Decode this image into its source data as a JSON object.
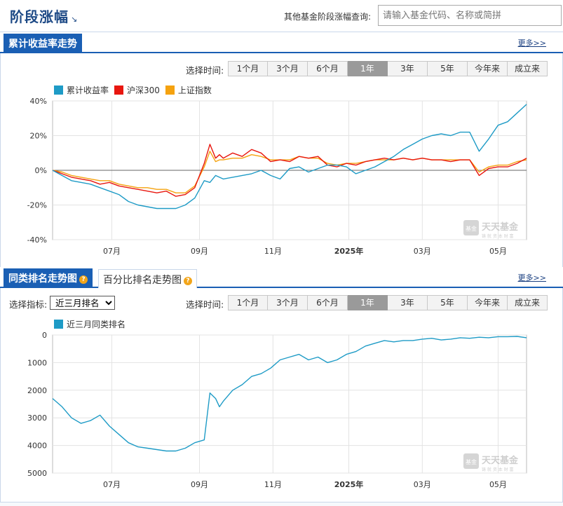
{
  "header": {
    "title": "阶段涨幅",
    "title_arrow": "↘",
    "search_label": "其他基金阶段涨幅查询:",
    "search_placeholder": "请输入基金代码、名称或简拼"
  },
  "section1": {
    "tab": "累计收益率走势",
    "more": "更多>>",
    "time_label": "选择时间:",
    "time_options": [
      "1个月",
      "3个月",
      "6个月",
      "1年",
      "3年",
      "5年",
      "今年来",
      "成立来"
    ],
    "active_time": "1年"
  },
  "section2": {
    "tab_active": "同类排名走势图",
    "tab_other": "百分比排名走势图",
    "help_glyph": "?",
    "more": "更多>>",
    "metric_label": "选择指标:",
    "metric_value": "近三月排名",
    "time_label": "选择时间:",
    "time_options": [
      "1个月",
      "3个月",
      "6个月",
      "1年",
      "3年",
      "5年",
      "今年来",
      "成立来"
    ],
    "active_time": "1年"
  },
  "watermark": {
    "badge": "基金",
    "text": "天天基金",
    "sub": "铸 就 资 本 财 富"
  },
  "colors": {
    "brand": "#1a5fb4",
    "fund": "#1e9bc6",
    "hs300": "#e8170f",
    "sh": "#f5a20f"
  },
  "chart_data": [
    {
      "type": "line",
      "x_ticks": [
        "07月",
        "09月",
        "11月",
        "2025年",
        "03月",
        "05月"
      ],
      "ylim": [
        -40,
        40
      ],
      "y_ticks": [
        "40%",
        "20%",
        "0%",
        "-20%",
        "-40%"
      ],
      "legend_position": "top-left",
      "grid": true,
      "x": [
        0,
        5,
        10,
        15,
        20,
        25,
        30,
        35,
        40,
        45,
        50,
        55,
        60,
        65,
        70,
        75,
        80,
        83,
        86,
        88,
        90,
        95,
        100,
        105,
        110,
        115,
        120,
        125,
        130,
        135,
        140,
        145,
        150,
        155,
        160,
        165,
        170,
        175,
        180,
        185,
        190,
        195,
        200,
        205,
        210,
        215,
        220,
        225,
        230,
        235,
        240,
        245,
        250
      ],
      "series": [
        {
          "name": "累计收益率",
          "values": [
            0,
            -3,
            -6,
            -7,
            -8,
            -10,
            -12,
            -14,
            -18,
            -20,
            -21,
            -22,
            -22,
            -22,
            -20,
            -16,
            -6,
            -7,
            -3,
            -4,
            -5,
            -4,
            -3,
            -2,
            0,
            -3,
            -5,
            1,
            2,
            -1,
            1,
            3,
            3,
            2,
            -2,
            0,
            2,
            5,
            8,
            12,
            15,
            18,
            20,
            21,
            20,
            22,
            22,
            11,
            18,
            26,
            28,
            33,
            38
          ]
        },
        {
          "name": "沪深300",
          "values": [
            0,
            -2,
            -4,
            -5,
            -6,
            -8,
            -7,
            -9,
            -10,
            -11,
            -12,
            -13,
            -12,
            -15,
            -14,
            -10,
            4,
            15,
            7,
            9,
            7,
            10,
            8,
            12,
            10,
            5,
            6,
            5,
            8,
            7,
            8,
            3,
            2,
            4,
            3,
            5,
            6,
            7,
            6,
            7,
            6,
            7,
            6,
            6,
            5,
            6,
            6,
            -3,
            1,
            2,
            2,
            4,
            7
          ]
        },
        {
          "name": "上证指数",
          "values": [
            0,
            -1,
            -3,
            -4,
            -5,
            -6,
            -6,
            -8,
            -9,
            -10,
            -10,
            -11,
            -11,
            -13,
            -13,
            -9,
            2,
            11,
            5,
            6,
            6,
            7,
            7,
            9,
            8,
            6,
            6,
            6,
            8,
            7,
            7,
            4,
            3,
            4,
            4,
            5,
            6,
            6,
            6,
            7,
            6,
            7,
            6,
            6,
            6,
            6,
            6,
            -1,
            2,
            3,
            3,
            5,
            6
          ]
        }
      ]
    },
    {
      "type": "line",
      "x_ticks": [
        "07月",
        "09月",
        "11月",
        "2025年",
        "03月",
        "05月"
      ],
      "ylim": [
        5000,
        0
      ],
      "y_ticks": [
        "0",
        "1000",
        "2000",
        "3000",
        "4000",
        "5000"
      ],
      "legend_position": "top-left",
      "grid": true,
      "x": [
        0,
        5,
        10,
        15,
        20,
        25,
        30,
        35,
        40,
        45,
        50,
        55,
        60,
        65,
        70,
        75,
        80,
        83,
        86,
        88,
        90,
        95,
        100,
        105,
        110,
        115,
        120,
        125,
        130,
        135,
        140,
        145,
        150,
        155,
        160,
        165,
        170,
        175,
        180,
        185,
        190,
        195,
        200,
        205,
        210,
        215,
        220,
        225,
        230,
        235,
        240,
        245,
        250
      ],
      "series": [
        {
          "name": "近三月同类排名",
          "values": [
            2300,
            2600,
            3000,
            3200,
            3100,
            2900,
            3300,
            3600,
            3900,
            4050,
            4100,
            4150,
            4200,
            4200,
            4100,
            3900,
            3800,
            2100,
            2300,
            2600,
            2400,
            2000,
            1800,
            1500,
            1400,
            1200,
            900,
            800,
            700,
            900,
            800,
            1000,
            900,
            700,
            600,
            400,
            300,
            200,
            250,
            200,
            200,
            150,
            120,
            180,
            150,
            100,
            120,
            80,
            100,
            60,
            60,
            50,
            100
          ]
        }
      ]
    }
  ]
}
